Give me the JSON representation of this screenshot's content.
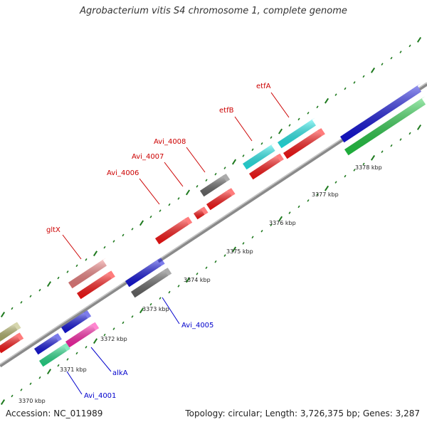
{
  "title": "Agrobacterium vitis S4 chromosome 1, complete genome",
  "footer": {
    "accession": "Accession: NC_011989",
    "topology": "Topology: circular; Length: 3,726,375 bp; Genes: 3,287"
  },
  "colors": {
    "backbone": "#8a8a8a",
    "tick": "#1f7a1f",
    "label_forward": "#cc0000",
    "label_reverse": "#0000cc"
  },
  "diagram": {
    "scale_labels": [
      "3370 kbp",
      "3371 kbp",
      "3372 kbp",
      "3373 kbp",
      "3374 kbp",
      "3375 kbp",
      "3376 kbp",
      "3377 kbp",
      "3378 kbp"
    ],
    "gene_labels_forward": [
      "gltX",
      "Avi_4006",
      "Avi_4007",
      "Avi_4008",
      "etfB",
      "etfA"
    ],
    "gene_labels_reverse": [
      "Avi_4001",
      "alkA",
      "Avi_4005"
    ]
  }
}
